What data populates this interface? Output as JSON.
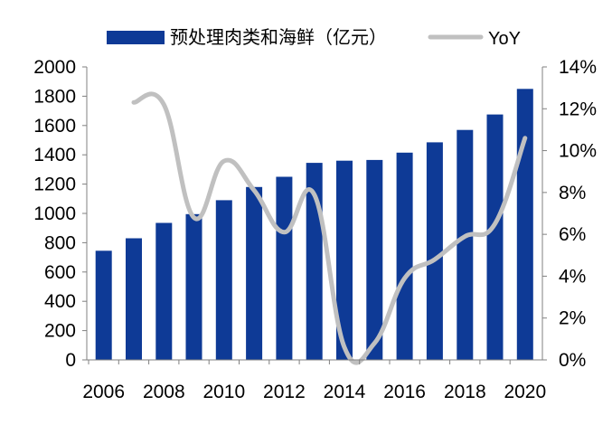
{
  "chart_data": {
    "type": "bar",
    "title": "",
    "categories": [
      2006,
      2007,
      2008,
      2009,
      2010,
      2011,
      2012,
      2013,
      2014,
      2015,
      2016,
      2017,
      2018,
      2019,
      2020
    ],
    "x_tick_labels": [
      "2006",
      "2008",
      "2010",
      "2012",
      "2014",
      "2016",
      "2018",
      "2020"
    ],
    "series": [
      {
        "name": "预处理肉类和海鲜（亿元）",
        "kind": "bar",
        "axis": "left",
        "color": "#0E3A96",
        "values": [
          745,
          830,
          935,
          995,
          1090,
          1180,
          1250,
          1345,
          1360,
          1365,
          1415,
          1485,
          1570,
          1675,
          1850
        ]
      },
      {
        "name": "YoY",
        "kind": "line",
        "axis": "right",
        "color": "#C0C0C0",
        "x": [
          2007,
          2008,
          2009,
          2010,
          2011,
          2012,
          2013,
          2014,
          2015,
          2016,
          2017,
          2018,
          2019,
          2020
        ],
        "values": [
          12.3,
          12.2,
          6.8,
          9.5,
          8.1,
          6.1,
          7.9,
          0.6,
          0.8,
          3.9,
          4.8,
          5.9,
          6.5,
          10.6
        ]
      }
    ],
    "y_left": {
      "min": 0,
      "max": 2000,
      "step": 200,
      "tick_labels": [
        "0",
        "200",
        "400",
        "600",
        "800",
        "1000",
        "1200",
        "1400",
        "1600",
        "1800",
        "2000"
      ]
    },
    "y_right": {
      "min": 0,
      "max": 14,
      "step": 2,
      "tick_labels": [
        "0%",
        "2%",
        "4%",
        "6%",
        "8%",
        "10%",
        "12%",
        "14%"
      ]
    },
    "grid": false,
    "legend_position": "top-center"
  }
}
